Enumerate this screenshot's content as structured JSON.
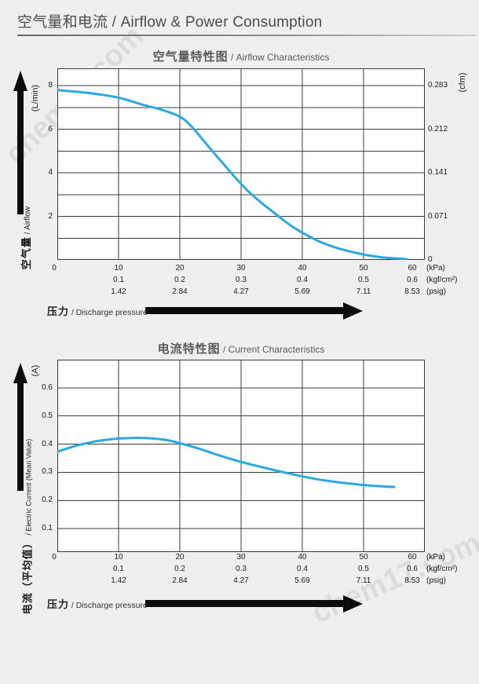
{
  "header": {
    "title": "空气量和电流 / Airflow & Power Consumption"
  },
  "watermark": "chem17.com",
  "chart_data": [
    {
      "type": "line",
      "title": {
        "zh": "空气量特性图",
        "en": " / Airflow Characteristics"
      },
      "line_color": "#2aa9e0",
      "xlim": [
        0,
        60
      ],
      "ylim": [
        0,
        8.8
      ],
      "x_gridlines": [
        10,
        20,
        30,
        40,
        50
      ],
      "y_gridlines": [
        1,
        2,
        3,
        4,
        5,
        6,
        7,
        8
      ],
      "y_axis_left": {
        "unit": "(L/min)",
        "label_zh": "空气量",
        "label_en": " / Airflow",
        "ticks": [
          {
            "value": 8,
            "label": "8"
          },
          {
            "value": 6,
            "label": "6"
          },
          {
            "value": 4,
            "label": "4"
          },
          {
            "value": 2,
            "label": "2"
          }
        ]
      },
      "y_axis_right": {
        "unit": "(cfm)",
        "ticks": [
          {
            "value": 8,
            "label": "0.283"
          },
          {
            "value": 6,
            "label": "0.212"
          },
          {
            "value": 4,
            "label": "0.141"
          },
          {
            "value": 2,
            "label": "0.071"
          },
          {
            "value": 0,
            "label": "0"
          }
        ]
      },
      "x_axis": {
        "zero_label": "0",
        "label_zh": "压力",
        "label_en": " / Discharge pressure",
        "tick_values": [
          10,
          20,
          30,
          40,
          50,
          60
        ],
        "rows": [
          {
            "values": [
              "10",
              "20",
              "30",
              "40",
              "50",
              "60"
            ],
            "unit": "(kPa)"
          },
          {
            "values": [
              "0.1",
              "0.2",
              "0.3",
              "0.4",
              "0.5",
              "0.6"
            ],
            "unit": "(kgf/cm²)"
          },
          {
            "values": [
              "1.42",
              "2.84",
              "4.27",
              "5.69",
              "7.11",
              "8.53"
            ],
            "unit": "(psig)"
          }
        ]
      },
      "series": [
        {
          "name": "airflow",
          "x": [
            0,
            5,
            10,
            14,
            17,
            20,
            22,
            25,
            27,
            29,
            31,
            33,
            35,
            38,
            40,
            43,
            46,
            50,
            53,
            57
          ],
          "y": [
            7.8,
            7.67,
            7.45,
            7.12,
            6.9,
            6.58,
            6.1,
            5.1,
            4.45,
            3.8,
            3.2,
            2.7,
            2.25,
            1.6,
            1.25,
            0.82,
            0.52,
            0.25,
            0.12,
            0.04
          ]
        }
      ]
    },
    {
      "type": "line",
      "title": {
        "zh": "电流特性图",
        "en": " / Current Characteristics"
      },
      "line_color": "#2aa9e0",
      "xlim": [
        0,
        60
      ],
      "ylim": [
        0,
        0.7
      ],
      "x_gridlines": [
        10,
        20,
        30,
        40,
        50
      ],
      "y_gridlines": [
        0.1,
        0.2,
        0.3,
        0.4,
        0.5,
        0.6
      ],
      "y_axis_left": {
        "unit": "(A)",
        "label_zh": "电流（平均值）",
        "label_en": " / Electric Current (Mean Value)",
        "ticks": [
          {
            "value": 0.6,
            "label": "0.6"
          },
          {
            "value": 0.5,
            "label": "0.5"
          },
          {
            "value": 0.4,
            "label": "0.4"
          },
          {
            "value": 0.3,
            "label": "0.3"
          },
          {
            "value": 0.2,
            "label": "0.2"
          },
          {
            "value": 0.1,
            "label": "0.1"
          }
        ]
      },
      "x_axis": {
        "zero_label": "0",
        "label_zh": "压力",
        "label_en": " / Discharge pressure",
        "tick_values": [
          10,
          20,
          30,
          40,
          50,
          60
        ],
        "rows": [
          {
            "values": [
              "10",
              "20",
              "30",
              "40",
              "50",
              "60"
            ],
            "unit": "(kPa)"
          },
          {
            "values": [
              "0.1",
              "0.2",
              "0.3",
              "0.4",
              "0.5",
              "0.6"
            ],
            "unit": "(kgf/cm²)"
          },
          {
            "values": [
              "1.42",
              "2.84",
              "4.27",
              "5.69",
              "7.11",
              "8.53"
            ],
            "unit": "(psig)"
          }
        ]
      },
      "series": [
        {
          "name": "electric-current",
          "x": [
            0,
            3,
            6,
            9,
            12,
            15,
            18,
            20,
            23,
            26,
            30,
            34,
            38,
            42,
            46,
            50,
            53,
            55
          ],
          "y": [
            0.373,
            0.394,
            0.409,
            0.418,
            0.422,
            0.421,
            0.414,
            0.403,
            0.385,
            0.363,
            0.337,
            0.315,
            0.295,
            0.277,
            0.264,
            0.255,
            0.25,
            0.248
          ]
        }
      ]
    }
  ]
}
